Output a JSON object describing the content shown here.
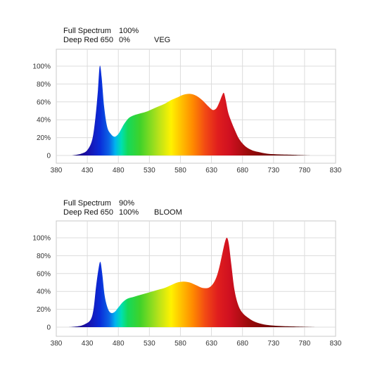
{
  "chart_data": [
    {
      "type": "area",
      "header": {
        "row1_label": "Full Spectrum",
        "row1_value": "100%",
        "row2_label": "Deep Red 650",
        "row2_value": "0%",
        "mode": "VEG"
      },
      "xlim": [
        380,
        830
      ],
      "ylim": [
        0,
        100
      ],
      "x_ticks": [
        380,
        430,
        480,
        530,
        580,
        630,
        680,
        730,
        780,
        830
      ],
      "y_ticks": [
        0,
        20,
        40,
        60,
        80,
        100
      ],
      "y_tick_labels": [
        "0",
        "20%",
        "40%",
        "60%",
        "80%",
        "100%"
      ],
      "grid": true,
      "x": [
        405,
        420,
        430,
        438,
        443,
        447,
        450,
        453,
        457,
        462,
        468,
        474,
        480,
        485,
        490,
        497,
        505,
        515,
        525,
        535,
        545,
        555,
        565,
        575,
        585,
        595,
        605,
        615,
        625,
        632,
        638,
        643,
        647,
        650,
        653,
        657,
        662,
        668,
        675,
        685,
        695,
        705,
        720,
        740,
        760,
        790
      ],
      "values": [
        0,
        2,
        6,
        18,
        42,
        72,
        100,
        88,
        55,
        32,
        24,
        21,
        24,
        30,
        36,
        42,
        45,
        47,
        49,
        52,
        55,
        58,
        62,
        65,
        68,
        69,
        67,
        62,
        55,
        51,
        53,
        60,
        67,
        70,
        62,
        48,
        38,
        28,
        18,
        10,
        6,
        4,
        2,
        1.2,
        0.8,
        0
      ]
    },
    {
      "type": "area",
      "header": {
        "row1_label": "Full Spectrum",
        "row1_value": "90%",
        "row2_label": "Deep Red 650",
        "row2_value": "100%",
        "mode": "BLOOM"
      },
      "xlim": [
        380,
        830
      ],
      "ylim": [
        0,
        100
      ],
      "x_ticks": [
        380,
        430,
        480,
        530,
        580,
        630,
        680,
        730,
        780,
        830
      ],
      "y_ticks": [
        0,
        20,
        40,
        60,
        80,
        100
      ],
      "y_tick_labels": [
        "0",
        "20%",
        "40%",
        "60%",
        "80%",
        "100%"
      ],
      "grid": true,
      "x": [
        400,
        415,
        425,
        435,
        440,
        444,
        448,
        451,
        454,
        458,
        463,
        468,
        474,
        480,
        487,
        495,
        505,
        515,
        525,
        535,
        545,
        555,
        565,
        575,
        585,
        595,
        605,
        615,
        625,
        632,
        638,
        643,
        648,
        652,
        655,
        658,
        662,
        667,
        673,
        680,
        690,
        700,
        715,
        735,
        760,
        800
      ],
      "values": [
        0,
        1,
        3,
        8,
        20,
        45,
        65,
        73,
        60,
        35,
        21,
        16,
        17,
        22,
        28,
        32,
        34,
        36,
        38,
        40,
        42,
        44,
        47,
        50,
        51,
        50,
        47,
        44,
        44,
        48,
        56,
        68,
        84,
        96,
        100,
        93,
        70,
        42,
        25,
        16,
        10,
        6,
        3,
        1.5,
        0.8,
        0
      ]
    }
  ]
}
